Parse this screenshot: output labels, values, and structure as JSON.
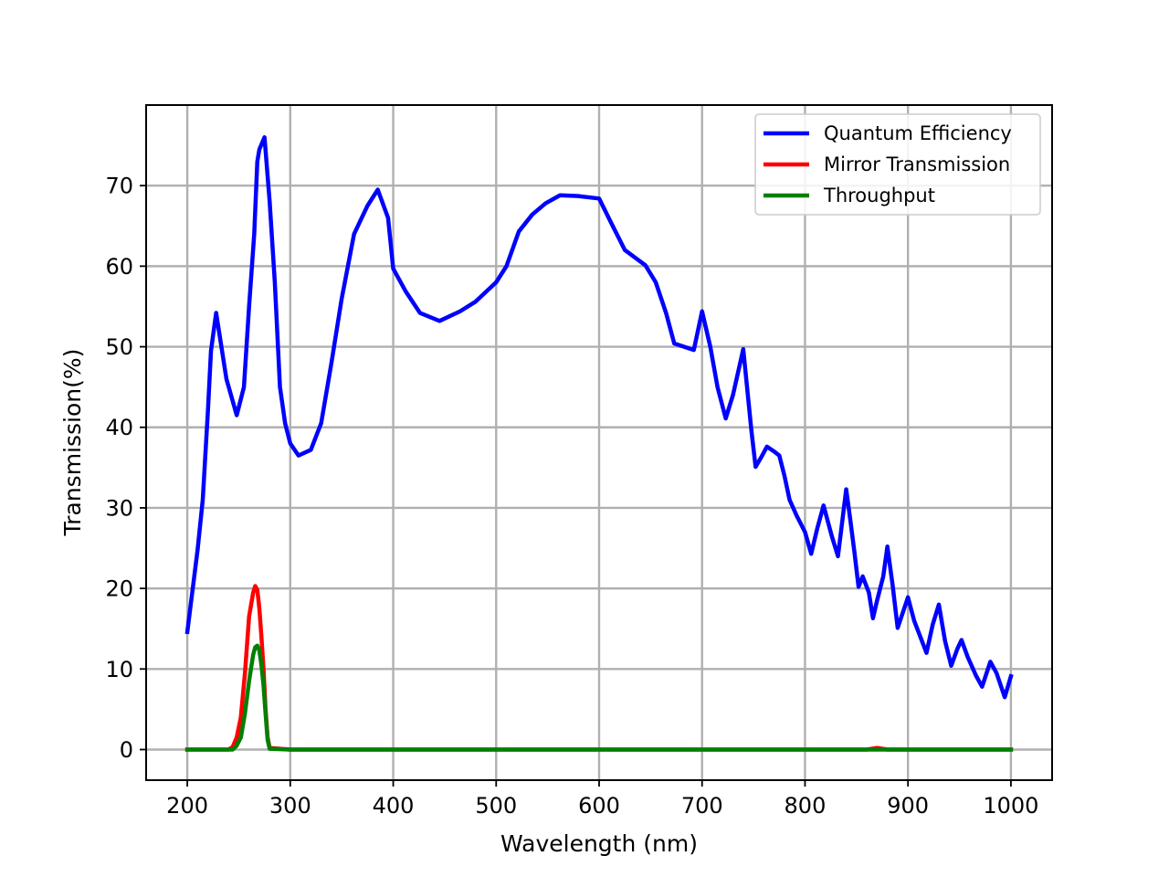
{
  "chart_data": {
    "type": "line",
    "xlabel": "Wavelength (nm)",
    "ylabel": "Transmission(%)",
    "xlim": [
      160,
      1040
    ],
    "ylim": [
      -3.8,
      80
    ],
    "xticks": [
      200,
      300,
      400,
      500,
      600,
      700,
      800,
      900,
      1000
    ],
    "yticks": [
      0,
      10,
      20,
      30,
      40,
      50,
      60,
      70
    ],
    "grid": true,
    "legend_position": "top-right",
    "series": [
      {
        "name": "Quantum Efficiency",
        "color": "#0000ff",
        "x": [
          200,
          210,
          215,
          220,
          223,
          228,
          238,
          248,
          255,
          260,
          265,
          268,
          270,
          275,
          280,
          285,
          290,
          295,
          300,
          308,
          320,
          330,
          340,
          350,
          362,
          375,
          385,
          395,
          400,
          412,
          426,
          445,
          465,
          480,
          500,
          510,
          522,
          535,
          548,
          562,
          580,
          600,
          612,
          625,
          645,
          655,
          665,
          673,
          692,
          700,
          708,
          715,
          723,
          730,
          740,
          748,
          752,
          758,
          763,
          770,
          775,
          780,
          785,
          792,
          800,
          806,
          812,
          818,
          826,
          832,
          840,
          844,
          848,
          852,
          856,
          862,
          866,
          870,
          876,
          880,
          885,
          890,
          895,
          900,
          906,
          912,
          918,
          924,
          930,
          936,
          942,
          948,
          952,
          958,
          966,
          972,
          980,
          986,
          994,
          1000
        ],
        "values": [
          14.6,
          24.8,
          31,
          42,
          49.5,
          54.2,
          46,
          41.5,
          45,
          55,
          64,
          73,
          74.5,
          76,
          68,
          58,
          45,
          40.5,
          38,
          36.5,
          37.2,
          40.5,
          48,
          56,
          64,
          67.5,
          69.5,
          66,
          59.7,
          56.9,
          54.2,
          53.2,
          54.4,
          55.6,
          58,
          60,
          64.3,
          66.4,
          67.8,
          68.8,
          68.7,
          68.4,
          65.3,
          62,
          60.1,
          58,
          54.2,
          50.4,
          49.6,
          54.4,
          50,
          45,
          41.1,
          44,
          49.7,
          39.5,
          35.1,
          36.4,
          37.6,
          37,
          36.5,
          34,
          31,
          29,
          27,
          24.3,
          27.5,
          30.3,
          26.5,
          24,
          32.3,
          28.5,
          24.5,
          20.2,
          21.5,
          19.5,
          16.3,
          18.5,
          21.5,
          25.2,
          20.5,
          15.1,
          17,
          18.9,
          16,
          14,
          12,
          15.5,
          18,
          13.5,
          10.4,
          12.5,
          13.6,
          11.5,
          9.2,
          7.8,
          10.9,
          9.5,
          6.5,
          9.1
        ]
      },
      {
        "name": "Mirror Transmission",
        "color": "#ff0000",
        "x": [
          200,
          240,
          244,
          248,
          252,
          256,
          260,
          264,
          266,
          268,
          270,
          272,
          274,
          276,
          278,
          280,
          300,
          400,
          500,
          600,
          700,
          800,
          860,
          870,
          880,
          1000
        ],
        "values": [
          0,
          0,
          0.3,
          1.5,
          4,
          9.5,
          16.5,
          19.5,
          20.3,
          19.8,
          17.5,
          14,
          10,
          5,
          1.5,
          0.2,
          0,
          0,
          0,
          0,
          0,
          0,
          0,
          0.2,
          0,
          0
        ]
      },
      {
        "name": "Throughput",
        "color": "#008000",
        "x": [
          200,
          244,
          248,
          252,
          256,
          260,
          264,
          266,
          268,
          270,
          272,
          274,
          276,
          278,
          280,
          300,
          400,
          500,
          600,
          700,
          800,
          900,
          1000
        ],
        "values": [
          0,
          0,
          0.5,
          1.5,
          4.5,
          8.5,
          11.8,
          12.7,
          12.9,
          12.3,
          10.5,
          8,
          4.5,
          1.2,
          0.1,
          0,
          0,
          0,
          0,
          0,
          0,
          0,
          0
        ]
      }
    ]
  }
}
